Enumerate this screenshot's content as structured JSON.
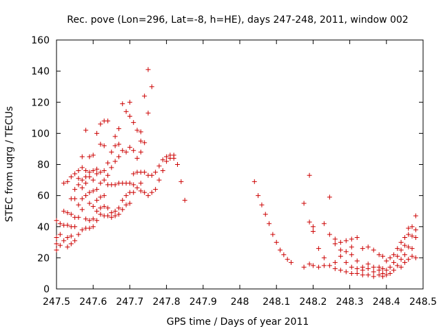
{
  "chart_data": {
    "type": "scatter",
    "title": "Rec. pove (Lon=296, Lat=-8, h=HE), days 247-248, 2011, window 002",
    "xlabel": "GPS time / Days of year 2011",
    "ylabel": "STEC from uqrg / TECUs",
    "xlim": [
      247.5,
      248.5
    ],
    "ylim": [
      0,
      160
    ],
    "xticks": [
      "247.5",
      "247.6",
      "247.7",
      "247.8",
      "247.9",
      "248",
      "248.1",
      "248.2",
      "248.3",
      "248.4",
      "248.5"
    ],
    "yticks": [
      "0",
      "20",
      "40",
      "60",
      "80",
      "100",
      "120",
      "140",
      "160"
    ],
    "grid": false,
    "marker": "plus",
    "color": "#cc0000",
    "points": [
      [
        247.5,
        44
      ],
      [
        247.5,
        33
      ],
      [
        247.5,
        29
      ],
      [
        247.5,
        25
      ],
      [
        247.51,
        42
      ],
      [
        247.51,
        35
      ],
      [
        247.51,
        28
      ],
      [
        247.52,
        68
      ],
      [
        247.52,
        50
      ],
      [
        247.52,
        41
      ],
      [
        247.52,
        31
      ],
      [
        247.53,
        69
      ],
      [
        247.53,
        49
      ],
      [
        247.53,
        41
      ],
      [
        247.53,
        33
      ],
      [
        247.53,
        27
      ],
      [
        247.54,
        72
      ],
      [
        247.54,
        58
      ],
      [
        247.54,
        48
      ],
      [
        247.54,
        40
      ],
      [
        247.54,
        34
      ],
      [
        247.54,
        29
      ],
      [
        247.55,
        74
      ],
      [
        247.55,
        64
      ],
      [
        247.55,
        58
      ],
      [
        247.55,
        46
      ],
      [
        247.55,
        40
      ],
      [
        247.55,
        31
      ],
      [
        247.56,
        76
      ],
      [
        247.56,
        71
      ],
      [
        247.56,
        67
      ],
      [
        247.56,
        54
      ],
      [
        247.56,
        46
      ],
      [
        247.56,
        35
      ],
      [
        247.57,
        85
      ],
      [
        247.57,
        78
      ],
      [
        247.57,
        70
      ],
      [
        247.57,
        65
      ],
      [
        247.57,
        58
      ],
      [
        247.57,
        51
      ],
      [
        247.57,
        38
      ],
      [
        247.58,
        102
      ],
      [
        247.58,
        76
      ],
      [
        247.58,
        72
      ],
      [
        247.58,
        68
      ],
      [
        247.58,
        60
      ],
      [
        247.58,
        45
      ],
      [
        247.58,
        39
      ],
      [
        247.59,
        85
      ],
      [
        247.59,
        75
      ],
      [
        247.59,
        72
      ],
      [
        247.59,
        62
      ],
      [
        247.59,
        55
      ],
      [
        247.59,
        44
      ],
      [
        247.59,
        39
      ],
      [
        247.6,
        86
      ],
      [
        247.6,
        76
      ],
      [
        247.6,
        70
      ],
      [
        247.6,
        63
      ],
      [
        247.6,
        53
      ],
      [
        247.6,
        45
      ],
      [
        247.6,
        40
      ],
      [
        247.61,
        100
      ],
      [
        247.61,
        77
      ],
      [
        247.61,
        74
      ],
      [
        247.61,
        64
      ],
      [
        247.61,
        57
      ],
      [
        247.61,
        50
      ],
      [
        247.61,
        44
      ],
      [
        247.62,
        106
      ],
      [
        247.62,
        93
      ],
      [
        247.62,
        75
      ],
      [
        247.62,
        68
      ],
      [
        247.62,
        59
      ],
      [
        247.62,
        52
      ],
      [
        247.62,
        48
      ],
      [
        247.63,
        108
      ],
      [
        247.63,
        92
      ],
      [
        247.63,
        76
      ],
      [
        247.63,
        70
      ],
      [
        247.63,
        60
      ],
      [
        247.63,
        53
      ],
      [
        247.63,
        47
      ],
      [
        247.64,
        108
      ],
      [
        247.64,
        81
      ],
      [
        247.64,
        73
      ],
      [
        247.64,
        67
      ],
      [
        247.64,
        52
      ],
      [
        247.64,
        47
      ],
      [
        247.65,
        88
      ],
      [
        247.65,
        78
      ],
      [
        247.65,
        67
      ],
      [
        247.65,
        49
      ],
      [
        247.65,
        46
      ],
      [
        247.66,
        98
      ],
      [
        247.66,
        92
      ],
      [
        247.66,
        82
      ],
      [
        247.66,
        67
      ],
      [
        247.66,
        50
      ],
      [
        247.66,
        47
      ],
      [
        247.67,
        103
      ],
      [
        247.67,
        93
      ],
      [
        247.67,
        85
      ],
      [
        247.67,
        68
      ],
      [
        247.67,
        52
      ],
      [
        247.67,
        48
      ],
      [
        247.68,
        119
      ],
      [
        247.68,
        89
      ],
      [
        247.68,
        68
      ],
      [
        247.68,
        57
      ],
      [
        247.68,
        51
      ],
      [
        247.69,
        114
      ],
      [
        247.69,
        88
      ],
      [
        247.69,
        68
      ],
      [
        247.69,
        60
      ],
      [
        247.69,
        54
      ],
      [
        247.7,
        120
      ],
      [
        247.7,
        111
      ],
      [
        247.7,
        91
      ],
      [
        247.7,
        68
      ],
      [
        247.7,
        62
      ],
      [
        247.7,
        55
      ],
      [
        247.71,
        107
      ],
      [
        247.71,
        89
      ],
      [
        247.71,
        74
      ],
      [
        247.71,
        67
      ],
      [
        247.71,
        62
      ],
      [
        247.72,
        102
      ],
      [
        247.72,
        84
      ],
      [
        247.72,
        75
      ],
      [
        247.72,
        65
      ],
      [
        247.73,
        101
      ],
      [
        247.73,
        95
      ],
      [
        247.73,
        88
      ],
      [
        247.73,
        75
      ],
      [
        247.73,
        68
      ],
      [
        247.73,
        63
      ],
      [
        247.74,
        124
      ],
      [
        247.74,
        94
      ],
      [
        247.74,
        75
      ],
      [
        247.74,
        62
      ],
      [
        247.75,
        141
      ],
      [
        247.75,
        113
      ],
      [
        247.75,
        73
      ],
      [
        247.75,
        60
      ],
      [
        247.76,
        130
      ],
      [
        247.76,
        73
      ],
      [
        247.76,
        62
      ],
      [
        247.77,
        75
      ],
      [
        247.77,
        64
      ],
      [
        247.78,
        79
      ],
      [
        247.78,
        70
      ],
      [
        247.79,
        83
      ],
      [
        247.79,
        76
      ],
      [
        247.8,
        85
      ],
      [
        247.8,
        82
      ],
      [
        247.81,
        86
      ],
      [
        247.81,
        84
      ],
      [
        247.82,
        86
      ],
      [
        247.82,
        84
      ],
      [
        247.83,
        80
      ],
      [
        247.84,
        69
      ],
      [
        247.85,
        57
      ],
      [
        248.04,
        69
      ],
      [
        248.05,
        60
      ],
      [
        248.06,
        54
      ],
      [
        248.07,
        48
      ],
      [
        248.08,
        42
      ],
      [
        248.09,
        35
      ],
      [
        248.1,
        30
      ],
      [
        248.11,
        25
      ],
      [
        248.12,
        22
      ],
      [
        248.13,
        19
      ],
      [
        248.14,
        17
      ],
      [
        248.175,
        55
      ],
      [
        248.175,
        14
      ],
      [
        248.19,
        73
      ],
      [
        248.19,
        43
      ],
      [
        248.19,
        16
      ],
      [
        248.2,
        40
      ],
      [
        248.2,
        37
      ],
      [
        248.2,
        15
      ],
      [
        248.215,
        26
      ],
      [
        248.215,
        14
      ],
      [
        248.23,
        42
      ],
      [
        248.23,
        20
      ],
      [
        248.23,
        15
      ],
      [
        248.245,
        59
      ],
      [
        248.245,
        35
      ],
      [
        248.245,
        15
      ],
      [
        248.26,
        32
      ],
      [
        248.26,
        29
      ],
      [
        248.26,
        17
      ],
      [
        248.26,
        13
      ],
      [
        248.275,
        30
      ],
      [
        248.275,
        25
      ],
      [
        248.275,
        21
      ],
      [
        248.275,
        12
      ],
      [
        248.29,
        31
      ],
      [
        248.29,
        24
      ],
      [
        248.29,
        17
      ],
      [
        248.29,
        11
      ],
      [
        248.305,
        32
      ],
      [
        248.305,
        27
      ],
      [
        248.305,
        22
      ],
      [
        248.305,
        14
      ],
      [
        248.305,
        10
      ],
      [
        248.32,
        33
      ],
      [
        248.32,
        18
      ],
      [
        248.32,
        13
      ],
      [
        248.32,
        10
      ],
      [
        248.335,
        26
      ],
      [
        248.335,
        14
      ],
      [
        248.335,
        12
      ],
      [
        248.335,
        9
      ],
      [
        248.35,
        27
      ],
      [
        248.35,
        16
      ],
      [
        248.35,
        13
      ],
      [
        248.35,
        9
      ],
      [
        248.365,
        25
      ],
      [
        248.365,
        14
      ],
      [
        248.365,
        11
      ],
      [
        248.365,
        8
      ],
      [
        248.38,
        22
      ],
      [
        248.38,
        14
      ],
      [
        248.38,
        12
      ],
      [
        248.38,
        9
      ],
      [
        248.39,
        21
      ],
      [
        248.39,
        13
      ],
      [
        248.39,
        10
      ],
      [
        248.39,
        8
      ],
      [
        248.4,
        18
      ],
      [
        248.4,
        12
      ],
      [
        248.4,
        9
      ],
      [
        248.41,
        20
      ],
      [
        248.41,
        14
      ],
      [
        248.41,
        10
      ],
      [
        248.42,
        22
      ],
      [
        248.42,
        17
      ],
      [
        248.42,
        12
      ],
      [
        248.43,
        26
      ],
      [
        248.43,
        21
      ],
      [
        248.43,
        15
      ],
      [
        248.44,
        30
      ],
      [
        248.44,
        25
      ],
      [
        248.44,
        19
      ],
      [
        248.44,
        14
      ],
      [
        248.45,
        33
      ],
      [
        248.45,
        28
      ],
      [
        248.45,
        22
      ],
      [
        248.45,
        17
      ],
      [
        248.46,
        39
      ],
      [
        248.46,
        35
      ],
      [
        248.46,
        27
      ],
      [
        248.46,
        19
      ],
      [
        248.47,
        40
      ],
      [
        248.47,
        34
      ],
      [
        248.47,
        26
      ],
      [
        248.47,
        21
      ],
      [
        248.48,
        47
      ],
      [
        248.48,
        38
      ],
      [
        248.48,
        33
      ],
      [
        248.48,
        20
      ]
    ]
  }
}
